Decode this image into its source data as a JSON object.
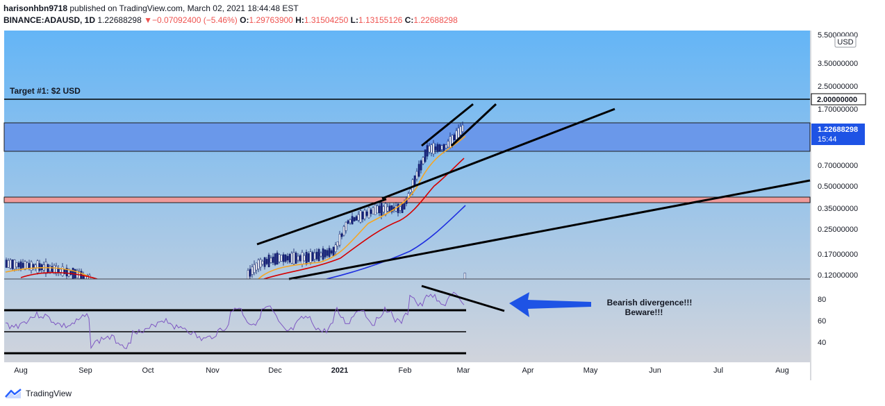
{
  "header": {
    "author": "harisonhbn9718",
    "published_text": "published on TradingView.com, March 02, 2021 18:44:48 EST",
    "symbol": "BINANCE:ADAUSD, 1D",
    "last": "1.22688298",
    "change_arrow": "▼",
    "change": "−0.07092400 (−5.46%)",
    "open_label": "O:",
    "open": "1.29763900",
    "high_label": "H:",
    "high": "1.31504250",
    "low_label": "L:",
    "low": "1.13155126",
    "close_label": "C:",
    "close": "1.22688298"
  },
  "price_axis": {
    "currency": "USD",
    "ticks": [
      "5.50000000",
      "3.50000000",
      "2.50000000",
      "1.70000000",
      "0.70000000",
      "0.50000000",
      "0.35000000",
      "0.25000000",
      "0.17000000",
      "0.12000000"
    ],
    "target_level": "2.00000000",
    "current_price": "1.22688298",
    "countdown": "15:44"
  },
  "rsi_axis": {
    "ticks": [
      "80",
      "60",
      "40"
    ]
  },
  "time_axis": {
    "labels": [
      "Aug",
      "Sep",
      "Oct",
      "Nov",
      "Dec",
      "2021",
      "Feb",
      "Mar",
      "Apr",
      "May",
      "Jun",
      "Jul",
      "Aug"
    ]
  },
  "annotations": {
    "target": "Target #1: $2 USD",
    "divergence_line1": "Bearish divergence!!!",
    "divergence_line2": "Beware!!!"
  },
  "footer": {
    "brand": "TradingView"
  },
  "colors": {
    "bg_top": "#64b5f6",
    "bg_bottom": "#d1d4dc",
    "price_badge": "#1e53e5",
    "zone_blue": "#6a98ea",
    "zone_red": "#ef9a9a",
    "down": "#ef5350",
    "rsi": "#7e57c2"
  }
}
